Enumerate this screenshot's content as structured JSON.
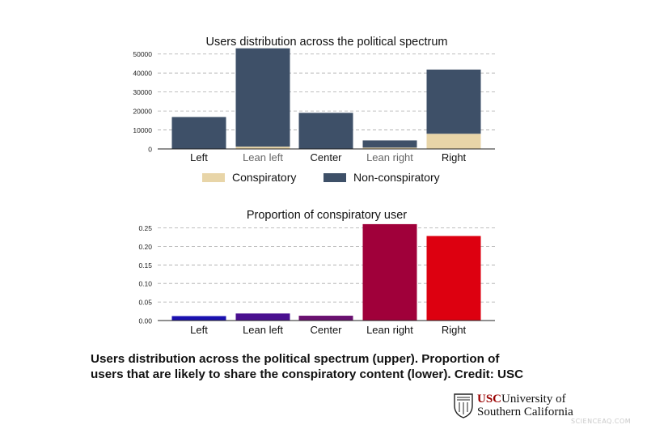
{
  "chart_data": [
    {
      "type": "bar",
      "stacked": true,
      "title": "Users distribution across the political spectrum",
      "categories": [
        "Left",
        "Lean left",
        "Center",
        "Lean right",
        "Right"
      ],
      "series": [
        {
          "name": "Conspiratory",
          "color": "#e8d5a8",
          "values": [
            0,
            1200,
            0,
            700,
            8000
          ]
        },
        {
          "name": "Non-conspiratory",
          "color": "#3e5068",
          "values": [
            16800,
            51800,
            19000,
            3800,
            33800
          ]
        }
      ],
      "ylim": [
        0,
        55000
      ],
      "yticks": [
        0,
        10000,
        20000,
        30000,
        40000,
        50000
      ],
      "grid": true,
      "legend": "bottom",
      "label_colors": {
        "Lean left": "#666666",
        "Lean right": "#666666"
      }
    },
    {
      "type": "bar",
      "title": "Proportion of conspiratory user",
      "categories": [
        "Left",
        "Lean left",
        "Center",
        "Lean right",
        "Right"
      ],
      "values": [
        0.012,
        0.019,
        0.013,
        0.26,
        0.228
      ],
      "colors": [
        "#1a10b0",
        "#4a1090",
        "#6a1070",
        "#a0003a",
        "#dd0010"
      ],
      "ylim": [
        0,
        0.262
      ],
      "yticks": [
        "0.00",
        "0.05",
        "0.10",
        "0.15",
        "0.20",
        "0.25"
      ],
      "grid": true
    }
  ],
  "caption": {
    "line1": "Users distribution across the political spectrum (upper). Proportion of",
    "line2": "users that are likely to share the conspiratory content (lower). Credit: USC"
  },
  "logo": {
    "usc": "USC",
    "line1_rest": "University of",
    "line2": "Southern California"
  },
  "watermark": "SCIENCEAQ.COM"
}
